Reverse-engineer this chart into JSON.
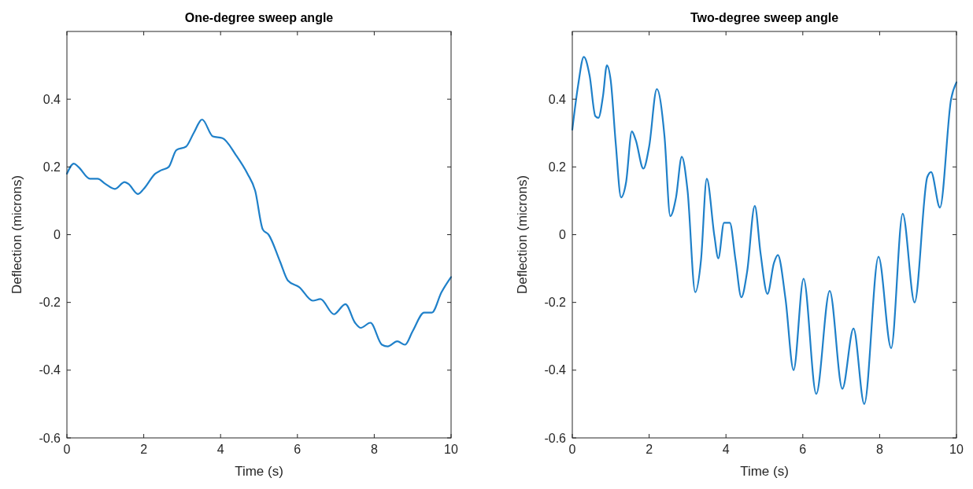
{
  "chart_data": [
    {
      "type": "line",
      "title": "One-degree sweep angle",
      "xlabel": "Time (s)",
      "ylabel": "Deflection (microns)",
      "x": [
        0,
        0.18,
        0.3,
        0.6,
        0.8,
        1.0,
        1.25,
        1.5,
        1.6,
        1.85,
        2.0,
        2.3,
        2.45,
        2.65,
        2.85,
        3.1,
        3.3,
        3.52,
        3.8,
        4.05,
        4.4,
        4.7,
        4.9,
        5.1,
        5.25,
        5.55,
        5.75,
        6.05,
        6.4,
        6.6,
        6.95,
        7.25,
        7.5,
        7.65,
        7.9,
        8.2,
        8.35,
        8.6,
        8.8,
        9.0,
        9.3,
        9.5,
        9.75,
        10
      ],
      "xlim": [
        0,
        10
      ],
      "ylim": [
        -0.6,
        0.6
      ],
      "xticks": [
        0,
        2,
        4,
        6,
        8,
        10
      ],
      "yticks": [
        -0.6,
        -0.4,
        -0.2,
        0,
        0.2,
        0.4
      ],
      "series": [
        {
          "color": "#1f80c9",
          "values": [
            0.18,
            0.21,
            0.2,
            0.165,
            0.165,
            0.15,
            0.135,
            0.155,
            0.15,
            0.12,
            0.135,
            0.18,
            0.19,
            0.2,
            0.25,
            0.26,
            0.3,
            0.34,
            0.29,
            0.285,
            0.235,
            0.18,
            0.13,
            0.015,
            0,
            -0.08,
            -0.135,
            -0.155,
            -0.195,
            -0.19,
            -0.235,
            -0.205,
            -0.26,
            -0.275,
            -0.26,
            -0.325,
            -0.33,
            -0.315,
            -0.325,
            -0.285,
            -0.23,
            -0.23,
            -0.17,
            -0.125
          ]
        }
      ]
    },
    {
      "type": "line",
      "title": "Two-degree sweep angle",
      "xlabel": "Time (s)",
      "ylabel": "Deflection (microns)",
      "x": [
        0,
        0.15,
        0.3,
        0.45,
        0.6,
        0.68,
        0.8,
        0.9,
        1.0,
        1.13,
        1.27,
        1.4,
        1.55,
        1.65,
        1.85,
        2.0,
        2.2,
        2.4,
        2.55,
        2.7,
        2.85,
        3.0,
        3.2,
        3.35,
        3.5,
        3.7,
        3.8,
        3.95,
        4.1,
        4.25,
        4.4,
        4.55,
        4.75,
        4.9,
        5.08,
        5.25,
        5.35,
        5.55,
        5.76,
        6.02,
        6.35,
        6.7,
        7.03,
        7.32,
        7.6,
        7.97,
        8.3,
        8.6,
        8.91,
        9.24,
        9.34,
        9.57,
        9.86,
        10
      ],
      "xlim": [
        0,
        10
      ],
      "ylim": [
        -0.6,
        0.6
      ],
      "xticks": [
        0,
        2,
        4,
        6,
        8,
        10
      ],
      "yticks": [
        -0.6,
        -0.4,
        -0.2,
        0,
        0.2,
        0.4
      ],
      "series": [
        {
          "color": "#1f80c9",
          "values": [
            0.31,
            0.44,
            0.525,
            0.47,
            0.35,
            0.345,
            0.41,
            0.5,
            0.455,
            0.27,
            0.11,
            0.155,
            0.305,
            0.28,
            0.195,
            0.26,
            0.43,
            0.29,
            0.055,
            0.11,
            0.23,
            0.13,
            -0.17,
            -0.075,
            0.165,
            -0.005,
            -0.07,
            0.035,
            0.035,
            -0.075,
            -0.185,
            -0.11,
            0.085,
            -0.055,
            -0.175,
            -0.083,
            -0.06,
            -0.19,
            -0.4,
            -0.13,
            -0.47,
            -0.166,
            -0.455,
            -0.277,
            -0.5,
            -0.065,
            -0.335,
            0.062,
            -0.2,
            0.17,
            0.185,
            0.08,
            0.4,
            0.45
          ]
        }
      ]
    }
  ]
}
